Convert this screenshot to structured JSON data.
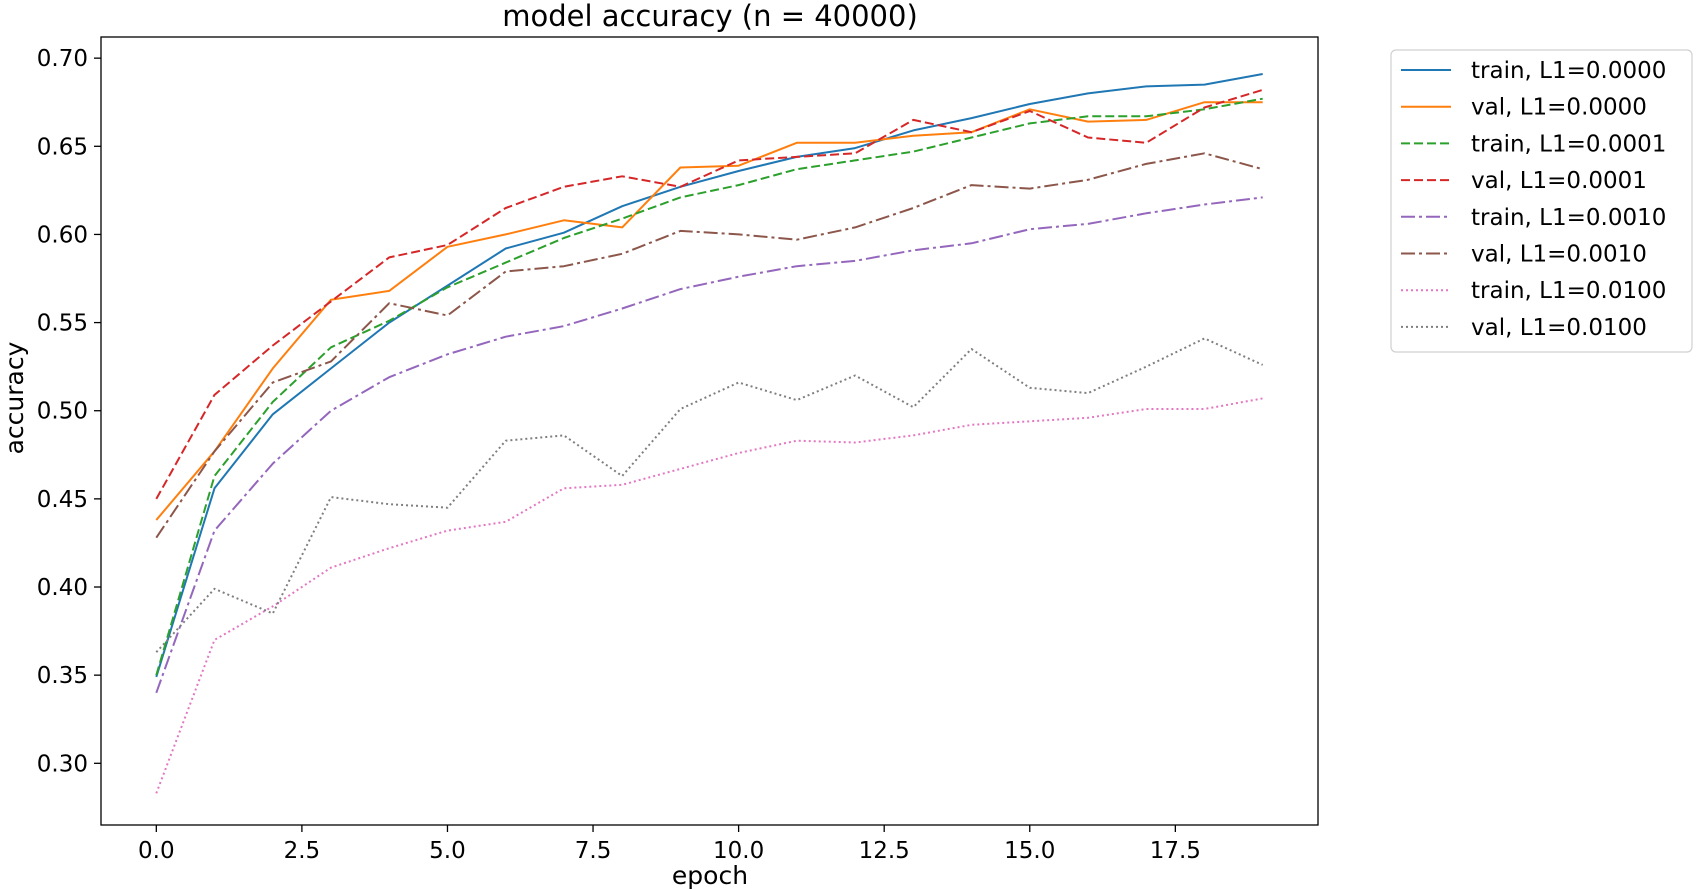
{
  "chart_data": {
    "type": "line",
    "title": "model accuracy (n = 40000)",
    "xlabel": "epoch",
    "ylabel": "accuracy",
    "xlim": [
      -0.95,
      19.95
    ],
    "ylim": [
      0.265,
      0.712
    ],
    "xticks": [
      0.0,
      2.5,
      5.0,
      7.5,
      10.0,
      12.5,
      15.0,
      17.5
    ],
    "xtick_labels": [
      "0.0",
      "2.5",
      "5.0",
      "7.5",
      "10.0",
      "12.5",
      "15.0",
      "17.5"
    ],
    "yticks": [
      0.3,
      0.35,
      0.4,
      0.45,
      0.5,
      0.55,
      0.6,
      0.65,
      0.7
    ],
    "ytick_labels": [
      "0.30",
      "0.35",
      "0.40",
      "0.45",
      "0.50",
      "0.55",
      "0.60",
      "0.65",
      "0.70"
    ],
    "grid": false,
    "legend_position": "outside-top-right",
    "x": [
      0,
      1,
      2,
      3,
      4,
      5,
      6,
      7,
      8,
      9,
      10,
      11,
      12,
      13,
      14,
      15,
      16,
      17,
      18,
      19
    ],
    "series": [
      {
        "name": "train, L1=0.0000",
        "color": "#1f77b4",
        "dash": "solid",
        "values": [
          0.349,
          0.456,
          0.498,
          0.524,
          0.55,
          0.571,
          0.592,
          0.601,
          0.616,
          0.627,
          0.636,
          0.644,
          0.649,
          0.659,
          0.666,
          0.674,
          0.68,
          0.684,
          0.685,
          0.691
        ]
      },
      {
        "name": "val, L1=0.0000",
        "color": "#ff7f0e",
        "dash": "solid",
        "values": [
          0.438,
          0.477,
          0.524,
          0.563,
          0.568,
          0.593,
          0.6,
          0.608,
          0.604,
          0.638,
          0.639,
          0.652,
          0.652,
          0.656,
          0.658,
          0.671,
          0.664,
          0.665,
          0.675,
          0.675
        ]
      },
      {
        "name": "train, L1=0.0001",
        "color": "#2ca02c",
        "dash": "dashed",
        "values": [
          0.35,
          0.463,
          0.505,
          0.536,
          0.551,
          0.57,
          0.584,
          0.598,
          0.609,
          0.621,
          0.628,
          0.637,
          0.642,
          0.647,
          0.655,
          0.663,
          0.667,
          0.667,
          0.671,
          0.677
        ]
      },
      {
        "name": "val, L1=0.0001",
        "color": "#d62728",
        "dash": "dashed",
        "values": [
          0.45,
          0.509,
          0.537,
          0.562,
          0.587,
          0.594,
          0.615,
          0.627,
          0.633,
          0.627,
          0.642,
          0.644,
          0.646,
          0.665,
          0.658,
          0.67,
          0.655,
          0.652,
          0.672,
          0.682
        ]
      },
      {
        "name": "train, L1=0.0010",
        "color": "#9467bd",
        "dash": "dashdot",
        "values": [
          0.34,
          0.432,
          0.47,
          0.5,
          0.519,
          0.532,
          0.542,
          0.548,
          0.558,
          0.569,
          0.576,
          0.582,
          0.585,
          0.591,
          0.595,
          0.603,
          0.606,
          0.612,
          0.617,
          0.621
        ]
      },
      {
        "name": "val, L1=0.0010",
        "color": "#8c564b",
        "dash": "dashdot",
        "values": [
          0.428,
          0.477,
          0.516,
          0.528,
          0.561,
          0.554,
          0.579,
          0.582,
          0.589,
          0.602,
          0.6,
          0.597,
          0.604,
          0.615,
          0.628,
          0.626,
          0.631,
          0.64,
          0.646,
          0.637
        ]
      },
      {
        "name": "train, L1=0.0100",
        "color": "#e377c2",
        "dash": "dotted",
        "values": [
          0.283,
          0.37,
          0.389,
          0.411,
          0.422,
          0.432,
          0.437,
          0.456,
          0.458,
          0.467,
          0.476,
          0.483,
          0.482,
          0.486,
          0.492,
          0.494,
          0.496,
          0.501,
          0.501,
          0.507
        ]
      },
      {
        "name": "val, L1=0.0100",
        "color": "#7f7f7f",
        "dash": "dotted",
        "values": [
          0.363,
          0.399,
          0.385,
          0.451,
          0.447,
          0.445,
          0.483,
          0.486,
          0.463,
          0.501,
          0.516,
          0.506,
          0.52,
          0.502,
          0.535,
          0.513,
          0.51,
          0.525,
          0.541,
          0.526
        ]
      }
    ]
  }
}
